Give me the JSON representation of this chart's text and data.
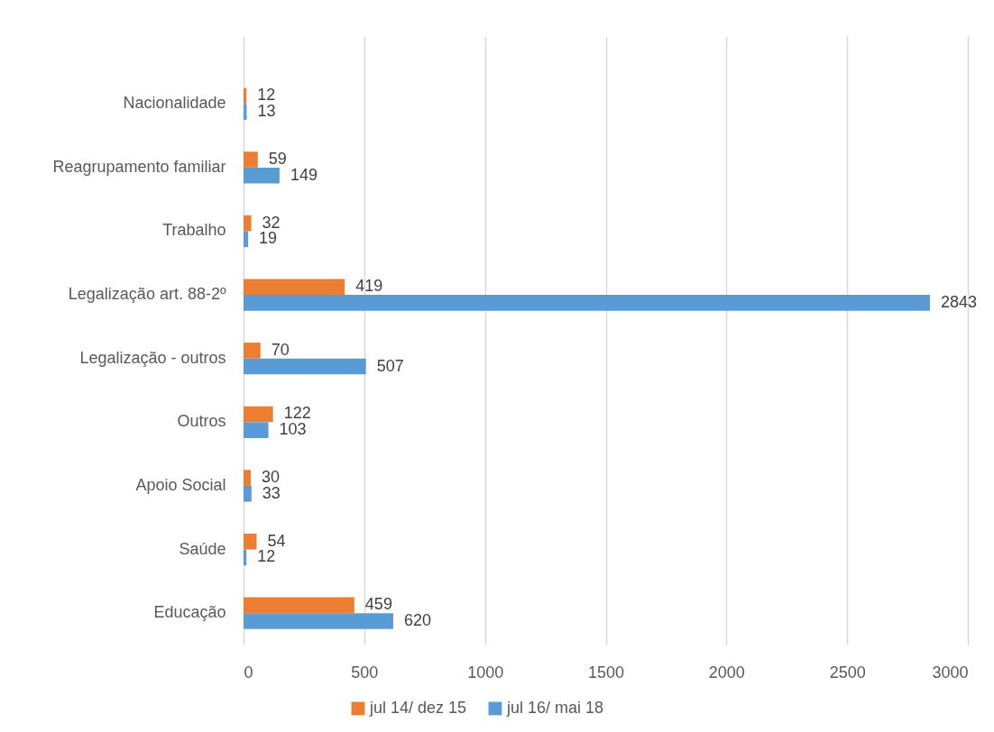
{
  "chart_data": {
    "type": "bar",
    "orientation": "horizontal",
    "categories": [
      "Nacionalidade",
      "Reagrupamento familiar",
      "Trabalho",
      "Legalização art. 88-2º",
      "Legalização - outros",
      "Outros",
      "Apoio Social",
      "Saúde",
      "Educação"
    ],
    "series": [
      {
        "name": "jul 14/ dez 15",
        "color": "#ed7d31",
        "values": [
          12,
          59,
          32,
          419,
          70,
          122,
          30,
          54,
          459
        ]
      },
      {
        "name": "jul 16/ mai 18",
        "color": "#5b9bd5",
        "values": [
          13,
          149,
          19,
          2843,
          507,
          103,
          33,
          12,
          620
        ]
      }
    ],
    "xlim": [
      0,
      3000
    ],
    "xticks": [
      0,
      500,
      1000,
      1500,
      2000,
      2500,
      3000
    ],
    "grid": "x",
    "legend": "bottom",
    "data_labels": true
  }
}
